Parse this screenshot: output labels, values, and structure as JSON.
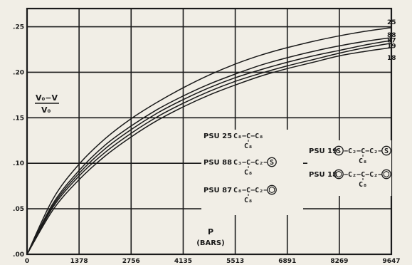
{
  "chart_data": {
    "type": "line",
    "xlabel": "P",
    "xlabel_unit": "(BARS)",
    "ylabel": {
      "numerator": "V₀−V",
      "denominator": "V₀"
    },
    "xlim": [
      0,
      9647
    ],
    "ylim": [
      0,
      0.27
    ],
    "grid": true,
    "x_ticks": [
      0,
      1378,
      2756,
      4135,
      5513,
      6891,
      8269,
      9647
    ],
    "x_tick_labels": [
      "0",
      "1378",
      "2756",
      "4135",
      "5513",
      "6891",
      "8269",
      "9647"
    ],
    "y_ticks": [
      0,
      0.05,
      0.1,
      0.15,
      0.2,
      0.25
    ],
    "y_tick_labels": [
      ".00",
      ".05",
      ".10",
      ".15",
      ".20",
      ".25"
    ],
    "x": [
      0,
      690,
      1378,
      2067,
      2756,
      3445,
      4135,
      4824,
      5513,
      6202,
      6891,
      7580,
      8269,
      8958,
      9647
    ],
    "series": [
      {
        "name": "25",
        "values": [
          0,
          0.061,
          0.099,
          0.127,
          0.149,
          0.167,
          0.183,
          0.197,
          0.209,
          0.219,
          0.227,
          0.234,
          0.24,
          0.245,
          0.249
        ]
      },
      {
        "name": "88",
        "values": [
          0,
          0.056,
          0.092,
          0.12,
          0.141,
          0.159,
          0.174,
          0.187,
          0.198,
          0.208,
          0.216,
          0.223,
          0.229,
          0.234,
          0.238
        ]
      },
      {
        "name": "87",
        "values": [
          0,
          0.054,
          0.089,
          0.116,
          0.137,
          0.155,
          0.17,
          0.183,
          0.194,
          0.203,
          0.211,
          0.218,
          0.224,
          0.23,
          0.235
        ]
      },
      {
        "name": "19",
        "values": [
          0,
          0.052,
          0.086,
          0.112,
          0.133,
          0.151,
          0.166,
          0.179,
          0.19,
          0.199,
          0.207,
          0.214,
          0.221,
          0.227,
          0.232
        ]
      },
      {
        "name": "18",
        "values": [
          0,
          0.049,
          0.082,
          0.108,
          0.129,
          0.147,
          0.162,
          0.175,
          0.186,
          0.196,
          0.204,
          0.211,
          0.218,
          0.223,
          0.227
        ]
      }
    ],
    "legend": [
      {
        "label": "PSU 25",
        "formula_main": "C₈−C−C₈",
        "formula_branch": "C₈"
      },
      {
        "label": "PSU 88",
        "formula_main": "C₃−C−C₂−",
        "formula_branch": "C₈",
        "ring": "S"
      },
      {
        "label": "PSU 87",
        "formula_main": "C₈−C−C₂−",
        "formula_branch": "C₈",
        "ring": "phenyl"
      },
      {
        "label": "PSU 19",
        "formula_main": "−C₂−C−C₂−",
        "formula_branch": "C₈",
        "ring": "S",
        "ring_left": "S"
      },
      {
        "label": "PSU 18",
        "formula_main": "−C₂−C−C₂−",
        "formula_branch": "C₈",
        "ring": "phenyl",
        "ring_left": "phenyl"
      }
    ]
  }
}
